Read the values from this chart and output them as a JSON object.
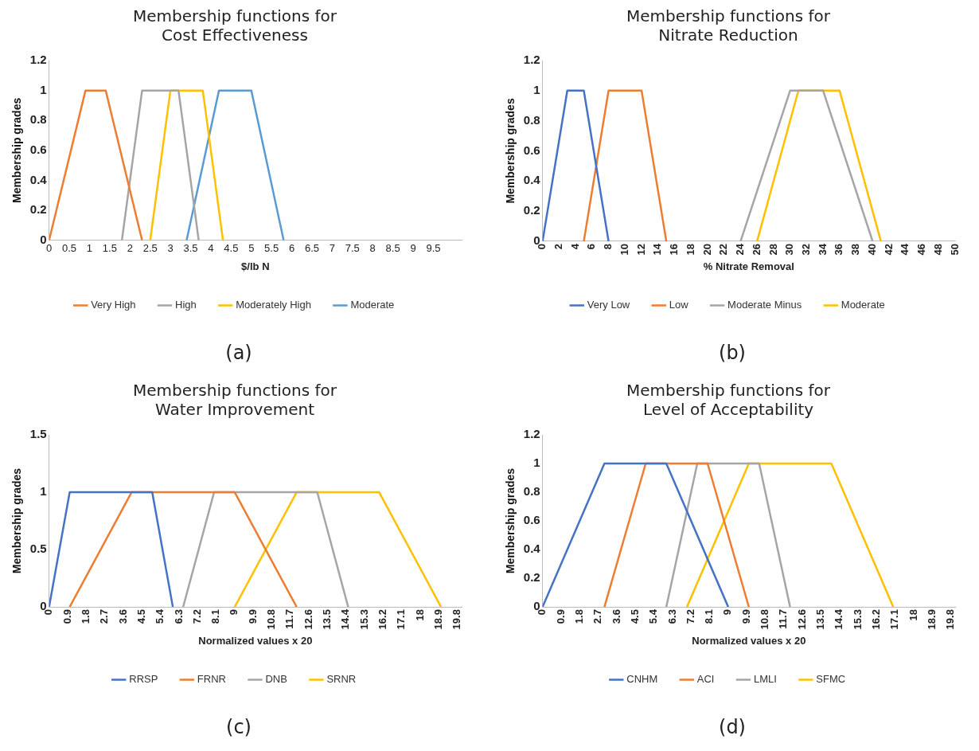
{
  "chart_data": [
    {
      "type": "line",
      "title": "Membership functions for\nCost Effectiveness",
      "xlabel": "$/lb N",
      "ylabel": "Membership grades",
      "xlim": [
        0,
        10.2
      ],
      "xticks": [
        0,
        0.5,
        1,
        1.5,
        2,
        2.5,
        3,
        3.5,
        4,
        4.5,
        5,
        5.5,
        6,
        6.5,
        7,
        7.5,
        8,
        8.5,
        9,
        9.5
      ],
      "ylim": [
        0,
        1.2
      ],
      "yticks": [
        0,
        0.2,
        0.4,
        0.6,
        0.8,
        1,
        1.2
      ],
      "grid": false,
      "legend": "bottom",
      "marker": "none",
      "annotations": [
        "(a)"
      ],
      "series": [
        {
          "name": "Very High",
          "color": "#ed7d31",
          "x": [
            0,
            0.9,
            1.4,
            2.3
          ],
          "values": [
            0,
            1,
            1,
            0
          ]
        },
        {
          "name": "High",
          "color": "#a5a5a5",
          "x": [
            1.8,
            2.3,
            3.2,
            3.7
          ],
          "values": [
            0,
            1,
            1,
            0
          ]
        },
        {
          "name": "Moderately High",
          "color": "#ffc000",
          "x": [
            2.5,
            3,
            3.8,
            4.3
          ],
          "values": [
            0,
            1,
            1,
            0
          ]
        },
        {
          "name": "Moderate",
          "color": "#5b9bd5",
          "x": [
            3.4,
            4.2,
            5,
            5.8
          ],
          "values": [
            0,
            1,
            1,
            0
          ]
        }
      ]
    },
    {
      "type": "line",
      "title": "Membership functions for\nNitrate Reduction",
      "xlabel": "% Nitrate Removal",
      "ylabel": "Membership grades",
      "xlim": [
        0,
        50
      ],
      "xticks": [
        0,
        2,
        4,
        6,
        8,
        10,
        12,
        14,
        16,
        18,
        20,
        22,
        24,
        26,
        28,
        30,
        32,
        34,
        36,
        38,
        40,
        42,
        44,
        46,
        48,
        50
      ],
      "ylim": [
        0,
        1.2
      ],
      "yticks": [
        0,
        0.2,
        0.4,
        0.6,
        0.8,
        1,
        1.2
      ],
      "grid": false,
      "legend": "bottom",
      "marker": "none",
      "annotations": [
        "(b)"
      ],
      "series": [
        {
          "name": "Very Low",
          "color": "#4472c4",
          "x": [
            0,
            3,
            5,
            8
          ],
          "values": [
            0,
            1,
            1,
            0
          ]
        },
        {
          "name": "Low",
          "color": "#ed7d31",
          "x": [
            5,
            8,
            12,
            15
          ],
          "values": [
            0,
            1,
            1,
            0
          ]
        },
        {
          "name": "Moderate Minus",
          "color": "#a5a5a5",
          "x": [
            24,
            30,
            34,
            40
          ],
          "values": [
            0,
            1,
            1,
            0
          ]
        },
        {
          "name": "Moderate",
          "color": "#ffc000",
          "x": [
            26,
            31,
            36,
            41
          ],
          "values": [
            0,
            1,
            1,
            0
          ]
        }
      ]
    },
    {
      "type": "line",
      "title": "Membership functions for\nWater Improvement",
      "xlabel": "Normalized values x 20",
      "ylabel": "Membership grades",
      "xlim": [
        0,
        20
      ],
      "xticks": [
        0,
        0.9,
        1.8,
        2.7,
        3.6,
        4.5,
        5.4,
        6.3,
        7.2,
        8.1,
        9,
        9.9,
        10.8,
        11.7,
        12.6,
        13.5,
        14.4,
        15.3,
        16.2,
        17.1,
        18,
        18.9,
        19.8
      ],
      "ylim": [
        0,
        1.5
      ],
      "yticks": [
        0,
        0.5,
        1,
        1.5
      ],
      "grid": false,
      "legend": "bottom",
      "marker": "none",
      "annotations": [
        "(c)"
      ],
      "series": [
        {
          "name": "RRSP",
          "color": "#4472c4",
          "x": [
            0,
            1,
            5,
            6
          ],
          "values": [
            0,
            1,
            1,
            0
          ]
        },
        {
          "name": "FRNR",
          "color": "#ed7d31",
          "x": [
            1,
            4,
            9,
            12
          ],
          "values": [
            0,
            1,
            1,
            0
          ]
        },
        {
          "name": "DNB",
          "color": "#a5a5a5",
          "x": [
            6.5,
            8,
            13,
            14.5
          ],
          "values": [
            0,
            1,
            1,
            0
          ]
        },
        {
          "name": "SRNR",
          "color": "#ffc000",
          "x": [
            9,
            12,
            16,
            19
          ],
          "values": [
            0,
            1,
            1,
            0
          ]
        }
      ]
    },
    {
      "type": "line",
      "title": "Membership functions for\nLevel of Acceptability",
      "xlabel": "Normalized values x 20",
      "ylabel": "Membership grades",
      "xlim": [
        0,
        20
      ],
      "xticks": [
        0,
        0.9,
        1.8,
        2.7,
        3.6,
        4.5,
        5.4,
        6.3,
        7.2,
        8.1,
        9,
        9.9,
        10.8,
        11.7,
        12.6,
        13.5,
        14.4,
        15.3,
        16.2,
        17.1,
        18,
        18.9,
        19.8
      ],
      "ylim": [
        0,
        1.2
      ],
      "yticks": [
        0,
        0.2,
        0.4,
        0.6,
        0.8,
        1,
        1.2
      ],
      "grid": false,
      "legend": "bottom",
      "marker": "none",
      "annotations": [
        "(d)"
      ],
      "series": [
        {
          "name": "CNHM",
          "color": "#4472c4",
          "x": [
            0,
            3,
            6,
            9
          ],
          "values": [
            0,
            1,
            1,
            0
          ]
        },
        {
          "name": "ACI",
          "color": "#ed7d31",
          "x": [
            3,
            5,
            8,
            10
          ],
          "values": [
            0,
            1,
            1,
            0
          ]
        },
        {
          "name": "LMLI",
          "color": "#a5a5a5",
          "x": [
            6,
            7.5,
            10.5,
            12
          ],
          "values": [
            0,
            1,
            1,
            0
          ]
        },
        {
          "name": "SFMC",
          "color": "#ffc000",
          "x": [
            7,
            10,
            14,
            17
          ],
          "values": [
            0,
            1,
            1,
            0
          ]
        }
      ]
    }
  ]
}
